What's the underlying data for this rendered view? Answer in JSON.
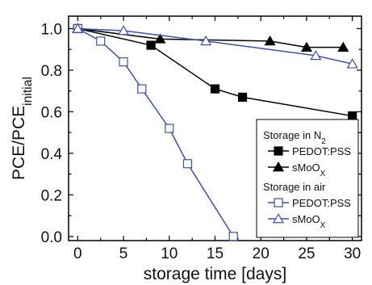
{
  "chart_data": {
    "type": "line",
    "xlabel": "storage time [days]",
    "ylabel": "PCE/PCE",
    "ylabel_sub": "initial",
    "xlim": [
      -1,
      31
    ],
    "ylim": [
      -0.02,
      1.06
    ],
    "x_ticks": [
      0,
      5,
      10,
      15,
      20,
      25,
      30
    ],
    "y_ticks": [
      0.0,
      0.2,
      0.4,
      0.6,
      0.8,
      1.0
    ],
    "y_tick_labels": [
      "0.0",
      "0.2",
      "0.4",
      "0.6",
      "0.8",
      "1.0"
    ],
    "legend": {
      "groups": [
        {
          "heading": "Storage in N",
          "heading_sub": "2",
          "series": [
            0,
            1
          ]
        },
        {
          "heading": "Storage in air",
          "heading_sub": "",
          "series": [
            2,
            3
          ]
        }
      ]
    },
    "series": [
      {
        "name": "PEDOT:PSS",
        "name_sub": "",
        "marker": "square-filled",
        "line_color": "#000000",
        "x": [
          0,
          8,
          15,
          18,
          30
        ],
        "y": [
          1.0,
          0.92,
          0.71,
          0.67,
          0.58
        ]
      },
      {
        "name": "sMoO",
        "name_sub": "X",
        "marker": "triangle-filled",
        "line_color": "#000000",
        "x": [
          0,
          9,
          21,
          25,
          29
        ],
        "y": [
          1.0,
          0.95,
          0.94,
          0.91,
          0.91
        ]
      },
      {
        "name": "PEDOT:PSS",
        "name_sub": "",
        "marker": "square-open",
        "line_color": "#3b4fb8",
        "x": [
          0,
          2.5,
          5,
          7,
          10,
          12,
          17
        ],
        "y": [
          1.0,
          0.94,
          0.84,
          0.71,
          0.52,
          0.35,
          0.0
        ]
      },
      {
        "name": "sMoO",
        "name_sub": "X",
        "marker": "triangle-open",
        "line_color": "#3b4fb8",
        "x": [
          0,
          5,
          14,
          26,
          30
        ],
        "y": [
          1.0,
          0.99,
          0.94,
          0.87,
          0.83
        ]
      }
    ]
  }
}
